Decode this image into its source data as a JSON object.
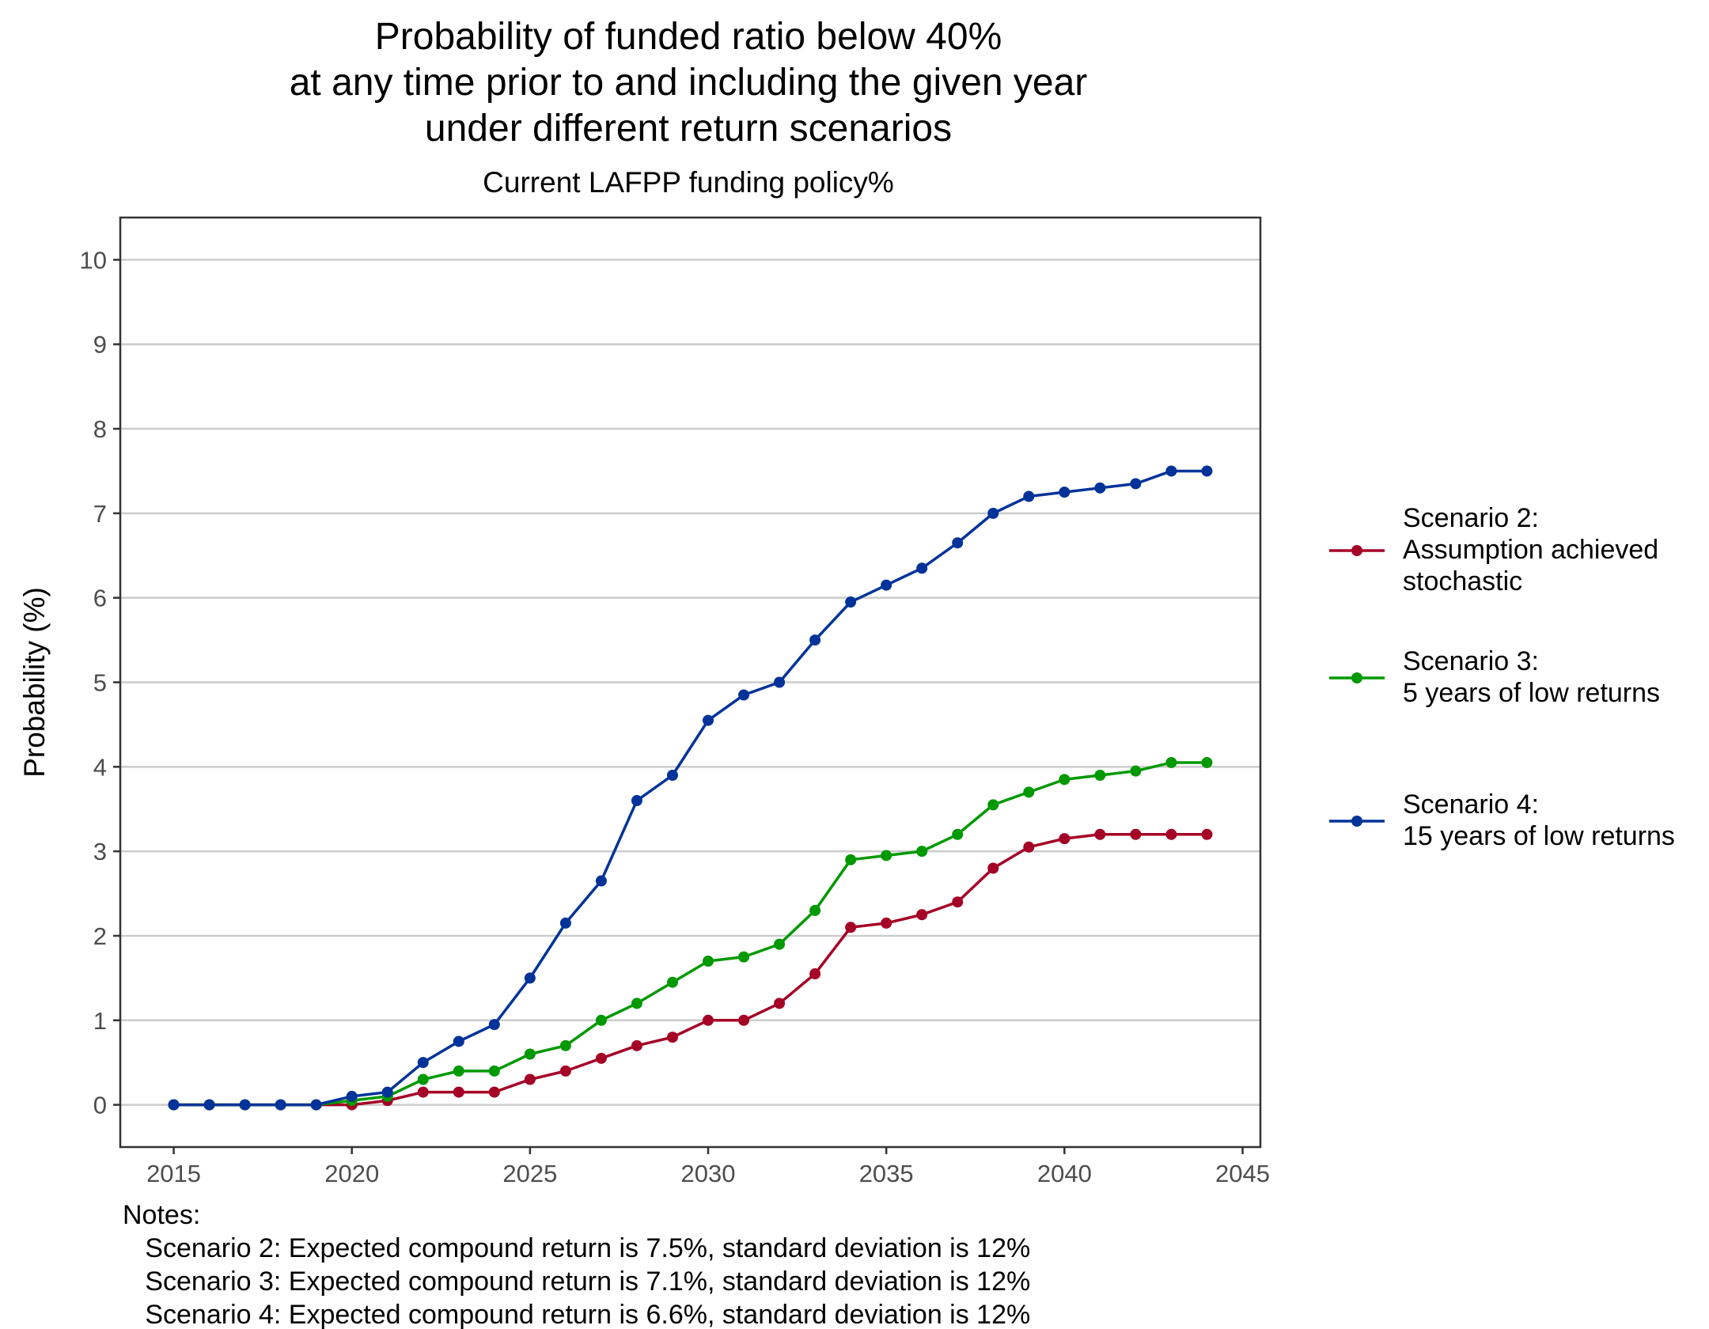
{
  "chart_data": {
    "type": "line",
    "title_lines": [
      "Probability of funded ratio below 40%",
      "at any time prior to and including the given year",
      "under different return scenarios"
    ],
    "subtitle": "Current LAFPP funding policy%",
    "xlabel": "",
    "ylabel": "Probability (%)",
    "xlim": [
      2013.5,
      2045.5
    ],
    "ylim": [
      -0.5,
      10.5
    ],
    "xticks": [
      2015,
      2020,
      2025,
      2030,
      2035,
      2040,
      2045
    ],
    "yticks": [
      0,
      1,
      2,
      3,
      4,
      5,
      6,
      7,
      8,
      9,
      10
    ],
    "grid": "horizontal major",
    "legend_position": "right",
    "x": [
      2015,
      2016,
      2017,
      2018,
      2019,
      2020,
      2021,
      2022,
      2023,
      2024,
      2025,
      2026,
      2027,
      2028,
      2029,
      2030,
      2031,
      2032,
      2033,
      2034,
      2035,
      2036,
      2037,
      2038,
      2039,
      2040,
      2041,
      2042,
      2043,
      2044
    ],
    "series": [
      {
        "name": "Scenario 2:\nAssumption achieved\nstochastic",
        "color": "#a50026",
        "values": [
          0,
          0,
          0,
          0,
          0,
          0,
          0.05,
          0.15,
          0.15,
          0.15,
          0.3,
          0.4,
          0.55,
          0.7,
          0.8,
          1.0,
          1.0,
          1.2,
          1.55,
          2.1,
          2.15,
          2.25,
          2.4,
          2.8,
          3.05,
          3.15,
          3.2,
          3.2,
          3.2,
          3.2
        ]
      },
      {
        "name": "Scenario 3:\n5 years of low returns",
        "color": "#009900",
        "values": [
          0,
          0,
          0,
          0,
          0,
          0.05,
          0.1,
          0.3,
          0.4,
          0.4,
          0.6,
          0.7,
          1.0,
          1.2,
          1.45,
          1.7,
          1.75,
          1.9,
          2.3,
          2.9,
          2.95,
          3.0,
          3.2,
          3.55,
          3.7,
          3.85,
          3.9,
          3.95,
          4.05,
          4.05
        ]
      },
      {
        "name": "Scenario 4:\n15 years of low returns",
        "color": "#003399",
        "values": [
          0,
          0,
          0,
          0,
          0,
          0.1,
          0.15,
          0.5,
          0.75,
          0.95,
          1.5,
          2.15,
          2.65,
          3.6,
          3.9,
          4.55,
          4.85,
          5.0,
          5.5,
          5.95,
          6.15,
          6.35,
          6.65,
          7.0,
          7.2,
          7.25,
          7.3,
          7.35,
          7.5,
          7.5
        ]
      }
    ],
    "notes": [
      "Notes:",
      "   Scenario 2: Expected compound return is 7.5%, standard deviation is 12%",
      "   Scenario 3: Expected compound return is 7.1%, standard deviation is 12%",
      "   Scenario 4: Expected compound return is 6.6%, standard deviation is 12%"
    ]
  }
}
